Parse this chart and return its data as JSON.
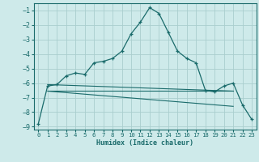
{
  "xlabel": "Humidex (Indice chaleur)",
  "background_color": "#ceeaea",
  "grid_color": "#aacece",
  "line_color": "#1a6b6b",
  "xlim": [
    -0.5,
    23.5
  ],
  "ylim": [
    -9.2,
    -0.5
  ],
  "yticks": [
    -1,
    -2,
    -3,
    -4,
    -5,
    -6,
    -7,
    -8,
    -9
  ],
  "xticks": [
    0,
    1,
    2,
    3,
    4,
    5,
    6,
    7,
    8,
    9,
    10,
    11,
    12,
    13,
    14,
    15,
    16,
    17,
    18,
    19,
    20,
    21,
    22,
    23
  ],
  "line1_x": [
    0,
    1,
    2,
    3,
    4,
    5,
    6,
    7,
    8,
    9,
    10,
    11,
    12,
    13,
    14,
    15,
    16,
    17,
    18,
    19,
    20,
    21,
    22,
    23
  ],
  "line1_y": [
    -8.8,
    -6.2,
    -6.1,
    -5.5,
    -5.3,
    -5.4,
    -4.6,
    -4.5,
    -4.3,
    -3.8,
    -2.6,
    -1.8,
    -0.8,
    -1.2,
    -2.5,
    -3.8,
    -4.3,
    -4.6,
    -6.5,
    -6.6,
    -6.2,
    -6.0,
    -7.5,
    -8.5
  ],
  "line2_x": [
    1,
    21
  ],
  "line2_y": [
    -6.55,
    -6.55
  ],
  "line3_x": [
    1,
    21
  ],
  "line3_y": [
    -6.1,
    -6.55
  ],
  "line4_x": [
    1,
    21
  ],
  "line4_y": [
    -6.55,
    -7.6
  ]
}
